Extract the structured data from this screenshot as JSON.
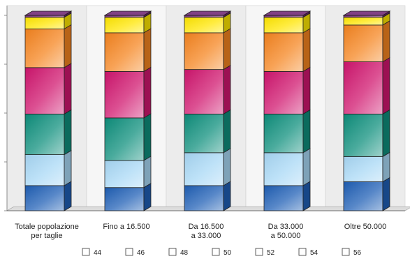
{
  "chart_data": {
    "type": "bar",
    "stacked": true,
    "percent_stacked": true,
    "three_d": true,
    "title": "",
    "xlabel": "",
    "ylabel": "",
    "ylim": [
      0,
      100
    ],
    "grid": false,
    "legend_position": "bottom",
    "categories": [
      [
        "Totale popolazione",
        "per taglie"
      ],
      [
        "Fino a 16.500"
      ],
      [
        "Da 16.500",
        "a 33.000"
      ],
      [
        "Da 33.000",
        "a 50.000"
      ],
      [
        "Oltre 50.000"
      ]
    ],
    "series": [
      {
        "name": "44",
        "color": "#1f5fb5",
        "values": [
          13,
          12,
          13,
          13,
          15
        ]
      },
      {
        "name": "46",
        "color": "#a8d8f5",
        "values": [
          16,
          14,
          17,
          17,
          13
        ]
      },
      {
        "name": "48",
        "color": "#0e8f7c",
        "values": [
          21,
          22,
          20,
          20,
          22
        ]
      },
      {
        "name": "50",
        "color": "#d0156e",
        "values": [
          24,
          24,
          23,
          22,
          27
        ]
      },
      {
        "name": "52",
        "color": "#f5841f",
        "values": [
          20,
          20,
          19,
          20,
          19
        ]
      },
      {
        "name": "54",
        "color": "#ffe600",
        "values": [
          6,
          8,
          8,
          8,
          4
        ]
      },
      {
        "name": "56",
        "color": "#6b1f6e",
        "values": [
          1,
          1,
          1,
          1,
          1
        ]
      }
    ]
  },
  "legend": {
    "items": [
      "44",
      "46",
      "48",
      "50",
      "52",
      "54",
      "56"
    ]
  }
}
